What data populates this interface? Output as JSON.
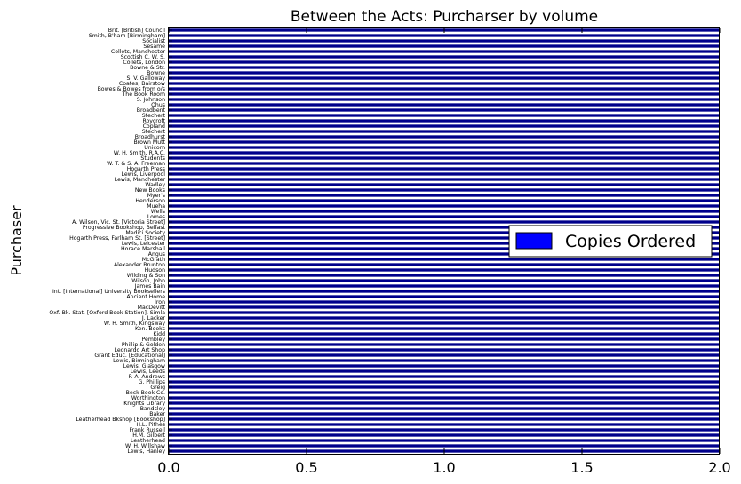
{
  "chart_data": {
    "type": "bar",
    "orientation": "horizontal",
    "title": "Between the Acts: Purcharser by volume",
    "xlabel": "",
    "ylabel": "Purchaser",
    "xlim": [
      0,
      2.0
    ],
    "xticks": [
      "0.0",
      "0.5",
      "1.0",
      "1.5",
      "2.0"
    ],
    "legend_position": "center-right",
    "bar_color": "#00008b",
    "categories": [
      "Lewis, Hanley",
      "W. H. Willshaw",
      "Leatherhead",
      "H.M. Gilbert",
      "Frank Russell",
      "H.L. Pithes",
      "Leatherhead Bkshop [Bookshop]",
      "Baker",
      "Bandsley",
      "Knights Library",
      "Worthington",
      "Beck Book Co.",
      "Greig",
      "G. Phillips",
      "P. A. Andrews",
      "Lewis, Leeds",
      "Lewis, Glasgow",
      "Lewis, Birmingham",
      "Grant Educ. [Educational]",
      "Leonardo Art Shop",
      "Phillip & Golden",
      "Pembley",
      "Kidd",
      "Ken. Books",
      "W. H. Smith, Kingsway",
      "J. Lacker",
      "Oxf. Bk. Stat. [Oxford Book Station], Simla",
      "MacDevitt",
      "Iron",
      "Ancient Home",
      "Int. [International] University Booksellers",
      "James Bain",
      "Wilson, John",
      "Wilding & Son",
      "Hudson",
      "Alexander Brunton",
      "McGrath",
      "Angus",
      "Horace Marshall",
      "Lewis, Leicester",
      "Hogarth Press, Farlham St. [Street]",
      "Medici Society",
      "Progressive Bookshop, Belfast",
      "A. Wilson, Vic. St. [Victoria Street]",
      "Lomes",
      "Wells",
      "Mueha",
      "Henderson",
      "Myer's",
      "New Books",
      "Wadley",
      "Lewis, Manchester",
      "Lewis, Liverpool",
      "Hogarth Press",
      "W. T. & S. A. Freeman",
      "Students",
      "W. H. Smith, R.A.C.",
      "Unicorn",
      "Brown Mutt",
      "Broadhurst",
      "Stechert",
      "Copland",
      "Roycroft",
      "Stechert",
      "Broadbent",
      "Ohus",
      "S. Johnson",
      "The Book Room",
      "Bowes & Bowes from o/s",
      "Coates, Bairstow",
      "S. V. Galloway",
      "Bowne",
      "Bowne & Str.",
      "Collets, London",
      "Scottish C. W. S.",
      "Collets, Manchester",
      "Sesame",
      "Socialist",
      "Smith, B'ham [Birmingham]",
      "Brit. [British] Council"
    ],
    "series": [
      {
        "name": "Copies Ordered",
        "values": [
          2,
          2,
          2,
          2,
          2,
          2,
          2,
          2,
          2,
          2,
          2,
          2,
          2,
          2,
          2,
          2,
          2,
          2,
          2,
          2,
          2,
          2,
          2,
          2,
          2,
          2,
          2,
          2,
          2,
          2,
          2,
          2,
          2,
          2,
          2,
          2,
          2,
          2,
          2,
          2,
          2,
          2,
          2,
          2,
          2,
          2,
          2,
          2,
          2,
          2,
          2,
          2,
          2,
          2,
          2,
          2,
          2,
          2,
          2,
          2,
          2,
          2,
          2,
          2,
          2,
          2,
          2,
          2,
          2,
          2,
          2,
          2,
          2,
          2,
          2,
          2,
          2,
          2,
          2,
          2
        ]
      }
    ]
  }
}
